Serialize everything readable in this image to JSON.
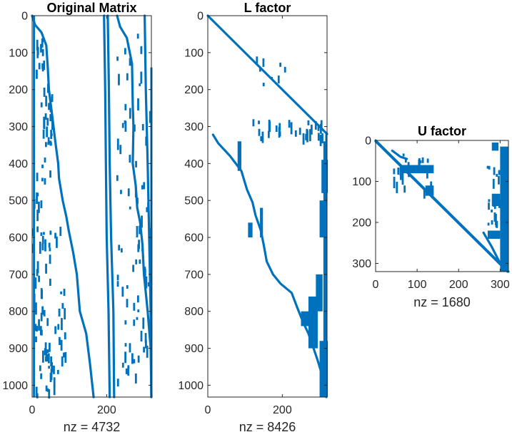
{
  "colors": {
    "marker": "#0072BD",
    "axis": "#262626",
    "background": "#ffffff"
  },
  "chart_data": [
    {
      "type": "spy",
      "title": "Original Matrix",
      "xlabel": "nz = 4732",
      "nz": 4732,
      "xlim": [
        0,
        320
      ],
      "ylim": [
        0,
        1032
      ],
      "xticks": [
        "0",
        "200"
      ],
      "yticks": [
        "0",
        "100",
        "200",
        "300",
        "400",
        "500",
        "600",
        "700",
        "800",
        "900",
        "1000"
      ],
      "structure": [
        {
          "kind": "curve",
          "points": [
            [
              0,
              0
            ],
            [
              8,
              25
            ],
            [
              25,
              45
            ],
            [
              38,
              80
            ],
            [
              42,
              140
            ],
            [
              45,
              200
            ],
            [
              55,
              280
            ],
            [
              62,
              340
            ],
            [
              70,
              400
            ],
            [
              72,
              440
            ]
          ]
        },
        {
          "kind": "curve",
          "points": [
            [
              72,
              440
            ],
            [
              82,
              500
            ],
            [
              92,
              545
            ],
            [
              98,
              580
            ]
          ]
        },
        {
          "kind": "curve",
          "points": [
            [
              98,
              580
            ],
            [
              110,
              640
            ],
            [
              120,
              700
            ],
            [
              128,
              800
            ],
            [
              145,
              860
            ],
            [
              155,
              940
            ],
            [
              165,
              1032
            ]
          ]
        },
        {
          "kind": "curve",
          "points": [
            [
              193,
              0
            ],
            [
              196,
              200
            ],
            [
              198,
              400
            ],
            [
              200,
              600
            ],
            [
              205,
              800
            ],
            [
              208,
              1032
            ]
          ]
        },
        {
          "kind": "curve",
          "points": [
            [
              203,
              0
            ],
            [
              206,
              200
            ],
            [
              208,
              400
            ],
            [
              212,
              600
            ],
            [
              218,
              800
            ],
            [
              220,
              1032
            ]
          ]
        },
        {
          "kind": "curve",
          "points": [
            [
              228,
              0
            ],
            [
              236,
              30
            ],
            [
              254,
              60
            ],
            [
              268,
              130
            ],
            [
              270,
              240
            ],
            [
              272,
              300
            ],
            [
              270,
              400
            ],
            [
              278,
              460
            ],
            [
              282,
              520
            ],
            [
              290,
              560
            ],
            [
              296,
              620
            ],
            [
              300,
              700
            ],
            [
              310,
              800
            ],
            [
              318,
              900
            ],
            [
              320,
              1032
            ]
          ]
        },
        {
          "kind": "curve",
          "points": [
            [
              302,
              0
            ],
            [
              305,
              200
            ],
            [
              310,
              400
            ],
            [
              314,
              600
            ],
            [
              318,
              800
            ],
            [
              320,
              1032
            ]
          ]
        },
        {
          "kind": "column",
          "x": 320,
          "y": [
            140,
            1032
          ]
        },
        {
          "kind": "column",
          "x": 5,
          "y": [
            0,
            1032
          ]
        }
      ],
      "scatter_regions": [
        {
          "x": [
            8,
            32
          ],
          "y": [
            40,
            160
          ],
          "count": 12
        },
        {
          "x": [
            25,
            55
          ],
          "y": [
            160,
            420
          ],
          "count": 26
        },
        {
          "x": [
            2,
            35
          ],
          "y": [
            420,
            1032
          ],
          "count": 40
        },
        {
          "x": [
            35,
            90
          ],
          "y": [
            560,
            1000
          ],
          "count": 30
        },
        {
          "x": [
            35,
            60
          ],
          "y": [
            880,
            1032
          ],
          "count": 16
        },
        {
          "x": [
            228,
            300
          ],
          "y": [
            40,
            560
          ],
          "count": 30
        },
        {
          "x": [
            228,
            300
          ],
          "y": [
            560,
            1000
          ],
          "count": 36
        },
        {
          "x": [
            300,
            318
          ],
          "y": [
            250,
            900
          ],
          "count": 16
        }
      ]
    },
    {
      "type": "spy",
      "title": "L factor",
      "xlabel": "nz = 8426",
      "nz": 8426,
      "xlim": [
        0,
        320
      ],
      "ylim": [
        0,
        1032
      ],
      "xticks": [
        "0",
        "200"
      ],
      "yticks": [
        "0",
        "100",
        "200",
        "300",
        "400",
        "500",
        "600",
        "700",
        "800",
        "900",
        "1000"
      ],
      "structure": [
        {
          "kind": "curve",
          "points": [
            [
              0,
              0
            ],
            [
              320,
              320
            ]
          ]
        },
        {
          "kind": "curve",
          "points": [
            [
              14,
              322
            ],
            [
              28,
              345
            ],
            [
              60,
              380
            ],
            [
              90,
              420
            ],
            [
              105,
              470
            ],
            [
              120,
              505
            ],
            [
              128,
              540
            ],
            [
              142,
              580
            ],
            [
              150,
              620
            ],
            [
              158,
              665
            ],
            [
              175,
              700
            ],
            [
              195,
              725
            ],
            [
              225,
              750
            ],
            [
              240,
              790
            ],
            [
              256,
              830
            ],
            [
              270,
              860
            ],
            [
              282,
              895
            ],
            [
              294,
              930
            ],
            [
              306,
              970
            ],
            [
              314,
              1010
            ],
            [
              318,
              1032
            ]
          ]
        },
        {
          "kind": "column",
          "x": 318,
          "y": [
            320,
            1032
          ]
        },
        {
          "kind": "column",
          "x": 313,
          "y": [
            340,
            1032
          ]
        }
      ],
      "blocks": [
        {
          "x": [
            305,
            322
          ],
          "y": [
            390,
            480
          ]
        },
        {
          "x": [
            300,
            312
          ],
          "y": [
            500,
            600
          ]
        },
        {
          "x": [
            290,
            308
          ],
          "y": [
            700,
            800
          ]
        },
        {
          "x": [
            270,
            295
          ],
          "y": [
            760,
            900
          ]
        },
        {
          "x": [
            250,
            290
          ],
          "y": [
            800,
            840
          ]
        },
        {
          "x": [
            300,
            322
          ],
          "y": [
            880,
            1032
          ]
        },
        {
          "x": [
            140,
            148
          ],
          "y": [
            520,
            600
          ]
        },
        {
          "x": [
            108,
            120
          ],
          "y": [
            560,
            600
          ]
        },
        {
          "x": [
            80,
            90
          ],
          "y": [
            340,
            420
          ]
        }
      ],
      "scatter_regions": [
        {
          "x": [
            120,
            320
          ],
          "y": [
            280,
            330
          ],
          "count": 30
        },
        {
          "x": [
            100,
            280
          ],
          "y": [
            80,
            200
          ],
          "count": 8
        }
      ]
    },
    {
      "type": "spy",
      "title": "U factor",
      "xlabel": "nz = 1680",
      "nz": 1680,
      "xlim": [
        0,
        320
      ],
      "ylim": [
        0,
        320
      ],
      "xticks": [
        "0",
        "100",
        "200",
        "300"
      ],
      "yticks": [
        "0",
        "100",
        "200",
        "300"
      ],
      "structure": [
        {
          "kind": "curve",
          "points": [
            [
              0,
              0
            ],
            [
              320,
              320
            ]
          ]
        },
        {
          "kind": "curve",
          "points": [
            [
              0,
              2
            ],
            [
              318,
              320
            ]
          ]
        },
        {
          "kind": "curve",
          "points": [
            [
              40,
              25
            ],
            [
              60,
              40
            ],
            [
              75,
              45
            ]
          ]
        },
        {
          "kind": "curve",
          "points": [
            [
              260,
              225
            ],
            [
              280,
              260
            ],
            [
              300,
              300
            ]
          ]
        }
      ],
      "blocks": [
        {
          "x": [
            60,
            140
          ],
          "y": [
            60,
            80
          ]
        },
        {
          "x": [
            120,
            140
          ],
          "y": [
            110,
            135
          ]
        },
        {
          "x": [
            300,
            320
          ],
          "y": [
            15,
            320
          ]
        },
        {
          "x": [
            280,
            296
          ],
          "y": [
            5,
            25
          ]
        },
        {
          "x": [
            270,
            300
          ],
          "y": [
            220,
            240
          ]
        },
        {
          "x": [
            280,
            300
          ],
          "y": [
            130,
            160
          ]
        }
      ],
      "scatter_regions": [
        {
          "x": [
            270,
            300
          ],
          "y": [
            60,
            220
          ],
          "count": 20
        },
        {
          "x": [
            40,
            140
          ],
          "y": [
            25,
            120
          ],
          "count": 20
        }
      ]
    }
  ]
}
